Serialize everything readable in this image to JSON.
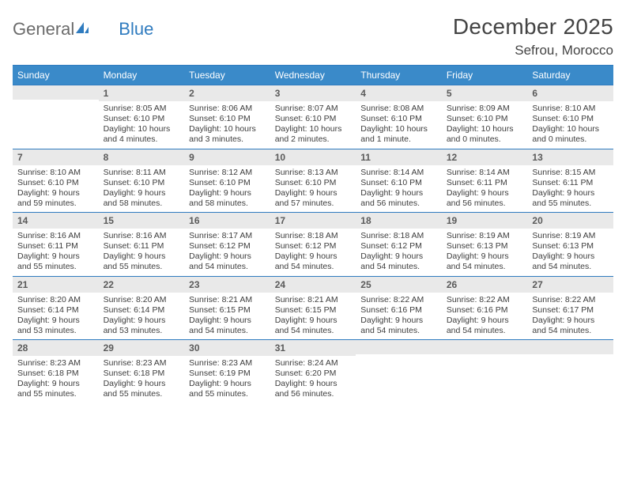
{
  "brand": {
    "part1": "General",
    "part2": "Blue"
  },
  "title": "December 2025",
  "location": "Sefrou, Morocco",
  "colors": {
    "header_bg": "#3a8ac9",
    "border": "#2f7bbf",
    "daynum_bg": "#e9e9e9",
    "text": "#333333",
    "weekday_text": "#ffffff"
  },
  "weekdays": [
    "Sunday",
    "Monday",
    "Tuesday",
    "Wednesday",
    "Thursday",
    "Friday",
    "Saturday"
  ],
  "weeks": [
    [
      {
        "n": "",
        "lines": []
      },
      {
        "n": "1",
        "lines": [
          "Sunrise: 8:05 AM",
          "Sunset: 6:10 PM",
          "Daylight: 10 hours",
          "and 4 minutes."
        ]
      },
      {
        "n": "2",
        "lines": [
          "Sunrise: 8:06 AM",
          "Sunset: 6:10 PM",
          "Daylight: 10 hours",
          "and 3 minutes."
        ]
      },
      {
        "n": "3",
        "lines": [
          "Sunrise: 8:07 AM",
          "Sunset: 6:10 PM",
          "Daylight: 10 hours",
          "and 2 minutes."
        ]
      },
      {
        "n": "4",
        "lines": [
          "Sunrise: 8:08 AM",
          "Sunset: 6:10 PM",
          "Daylight: 10 hours",
          "and 1 minute."
        ]
      },
      {
        "n": "5",
        "lines": [
          "Sunrise: 8:09 AM",
          "Sunset: 6:10 PM",
          "Daylight: 10 hours",
          "and 0 minutes."
        ]
      },
      {
        "n": "6",
        "lines": [
          "Sunrise: 8:10 AM",
          "Sunset: 6:10 PM",
          "Daylight: 10 hours",
          "and 0 minutes."
        ]
      }
    ],
    [
      {
        "n": "7",
        "lines": [
          "Sunrise: 8:10 AM",
          "Sunset: 6:10 PM",
          "Daylight: 9 hours",
          "and 59 minutes."
        ]
      },
      {
        "n": "8",
        "lines": [
          "Sunrise: 8:11 AM",
          "Sunset: 6:10 PM",
          "Daylight: 9 hours",
          "and 58 minutes."
        ]
      },
      {
        "n": "9",
        "lines": [
          "Sunrise: 8:12 AM",
          "Sunset: 6:10 PM",
          "Daylight: 9 hours",
          "and 58 minutes."
        ]
      },
      {
        "n": "10",
        "lines": [
          "Sunrise: 8:13 AM",
          "Sunset: 6:10 PM",
          "Daylight: 9 hours",
          "and 57 minutes."
        ]
      },
      {
        "n": "11",
        "lines": [
          "Sunrise: 8:14 AM",
          "Sunset: 6:10 PM",
          "Daylight: 9 hours",
          "and 56 minutes."
        ]
      },
      {
        "n": "12",
        "lines": [
          "Sunrise: 8:14 AM",
          "Sunset: 6:11 PM",
          "Daylight: 9 hours",
          "and 56 minutes."
        ]
      },
      {
        "n": "13",
        "lines": [
          "Sunrise: 8:15 AM",
          "Sunset: 6:11 PM",
          "Daylight: 9 hours",
          "and 55 minutes."
        ]
      }
    ],
    [
      {
        "n": "14",
        "lines": [
          "Sunrise: 8:16 AM",
          "Sunset: 6:11 PM",
          "Daylight: 9 hours",
          "and 55 minutes."
        ]
      },
      {
        "n": "15",
        "lines": [
          "Sunrise: 8:16 AM",
          "Sunset: 6:11 PM",
          "Daylight: 9 hours",
          "and 55 minutes."
        ]
      },
      {
        "n": "16",
        "lines": [
          "Sunrise: 8:17 AM",
          "Sunset: 6:12 PM",
          "Daylight: 9 hours",
          "and 54 minutes."
        ]
      },
      {
        "n": "17",
        "lines": [
          "Sunrise: 8:18 AM",
          "Sunset: 6:12 PM",
          "Daylight: 9 hours",
          "and 54 minutes."
        ]
      },
      {
        "n": "18",
        "lines": [
          "Sunrise: 8:18 AM",
          "Sunset: 6:12 PM",
          "Daylight: 9 hours",
          "and 54 minutes."
        ]
      },
      {
        "n": "19",
        "lines": [
          "Sunrise: 8:19 AM",
          "Sunset: 6:13 PM",
          "Daylight: 9 hours",
          "and 54 minutes."
        ]
      },
      {
        "n": "20",
        "lines": [
          "Sunrise: 8:19 AM",
          "Sunset: 6:13 PM",
          "Daylight: 9 hours",
          "and 54 minutes."
        ]
      }
    ],
    [
      {
        "n": "21",
        "lines": [
          "Sunrise: 8:20 AM",
          "Sunset: 6:14 PM",
          "Daylight: 9 hours",
          "and 53 minutes."
        ]
      },
      {
        "n": "22",
        "lines": [
          "Sunrise: 8:20 AM",
          "Sunset: 6:14 PM",
          "Daylight: 9 hours",
          "and 53 minutes."
        ]
      },
      {
        "n": "23",
        "lines": [
          "Sunrise: 8:21 AM",
          "Sunset: 6:15 PM",
          "Daylight: 9 hours",
          "and 54 minutes."
        ]
      },
      {
        "n": "24",
        "lines": [
          "Sunrise: 8:21 AM",
          "Sunset: 6:15 PM",
          "Daylight: 9 hours",
          "and 54 minutes."
        ]
      },
      {
        "n": "25",
        "lines": [
          "Sunrise: 8:22 AM",
          "Sunset: 6:16 PM",
          "Daylight: 9 hours",
          "and 54 minutes."
        ]
      },
      {
        "n": "26",
        "lines": [
          "Sunrise: 8:22 AM",
          "Sunset: 6:16 PM",
          "Daylight: 9 hours",
          "and 54 minutes."
        ]
      },
      {
        "n": "27",
        "lines": [
          "Sunrise: 8:22 AM",
          "Sunset: 6:17 PM",
          "Daylight: 9 hours",
          "and 54 minutes."
        ]
      }
    ],
    [
      {
        "n": "28",
        "lines": [
          "Sunrise: 8:23 AM",
          "Sunset: 6:18 PM",
          "Daylight: 9 hours",
          "and 55 minutes."
        ]
      },
      {
        "n": "29",
        "lines": [
          "Sunrise: 8:23 AM",
          "Sunset: 6:18 PM",
          "Daylight: 9 hours",
          "and 55 minutes."
        ]
      },
      {
        "n": "30",
        "lines": [
          "Sunrise: 8:23 AM",
          "Sunset: 6:19 PM",
          "Daylight: 9 hours",
          "and 55 minutes."
        ]
      },
      {
        "n": "31",
        "lines": [
          "Sunrise: 8:24 AM",
          "Sunset: 6:20 PM",
          "Daylight: 9 hours",
          "and 56 minutes."
        ]
      },
      {
        "n": "",
        "lines": []
      },
      {
        "n": "",
        "lines": []
      },
      {
        "n": "",
        "lines": []
      }
    ]
  ]
}
